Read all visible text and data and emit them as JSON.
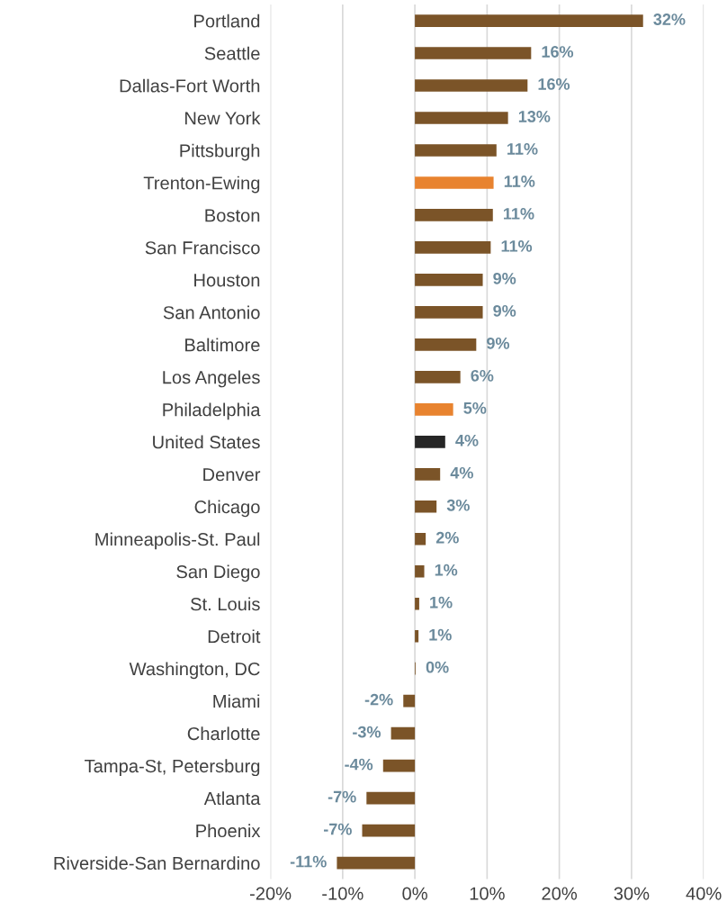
{
  "chart_data": {
    "type": "bar",
    "orientation": "horizontal",
    "categories": [
      "Portland",
      "Seattle",
      "Dallas-Fort Worth",
      "New York",
      "Pittsburgh",
      "Trenton-Ewing",
      "Boston",
      "San Francisco",
      "Houston",
      "San Antonio",
      "Baltimore",
      "Los Angeles",
      "Philadelphia",
      "United States",
      "Denver",
      "Chicago",
      "Minneapolis-St. Paul",
      "San Diego",
      "St. Louis",
      "Detroit",
      "Washington, DC",
      "Miami",
      "Charlotte",
      "Tampa-St, Petersburg",
      "Atlanta",
      "Phoenix",
      "Riverside-San Bernardino"
    ],
    "values": [
      31.6,
      16.1,
      15.6,
      12.9,
      11.3,
      10.9,
      10.8,
      10.5,
      9.4,
      9.4,
      8.5,
      6.3,
      5.3,
      4.2,
      3.5,
      3.0,
      1.5,
      1.3,
      0.6,
      0.5,
      0.1,
      -1.6,
      -3.3,
      -4.4,
      -6.7,
      -7.3,
      -10.8
    ],
    "colors": [
      "#7b5428",
      "#7b5428",
      "#7b5428",
      "#7b5428",
      "#7b5428",
      "#e8832f",
      "#7b5428",
      "#7b5428",
      "#7b5428",
      "#7b5428",
      "#7b5428",
      "#7b5428",
      "#e8832f",
      "#262626",
      "#7b5428",
      "#7b5428",
      "#7b5428",
      "#7b5428",
      "#7b5428",
      "#7b5428",
      "#7b5428",
      "#7b5428",
      "#7b5428",
      "#7b5428",
      "#7b5428",
      "#7b5428",
      "#7b5428"
    ],
    "value_labels": [
      "32%",
      "16%",
      "16%",
      "13%",
      "11%",
      "11%",
      "11%",
      "11%",
      "9%",
      "9%",
      "9%",
      "6%",
      "5%",
      "4%",
      "4%",
      "3%",
      "2%",
      "1%",
      "1%",
      "1%",
      "0%",
      "-2%",
      "-3%",
      "-4%",
      "-7%",
      "-7%",
      "-11%"
    ],
    "xlim": [
      -20,
      40
    ],
    "xticks": [
      {
        "value": -20,
        "label": "-20%"
      },
      {
        "value": -10,
        "label": "-10%"
      },
      {
        "value": 0,
        "label": "0%"
      },
      {
        "value": 10,
        "label": "10%"
      },
      {
        "value": 20,
        "label": "20%"
      },
      {
        "value": 30,
        "label": "30%"
      },
      {
        "value": 40,
        "label": "40%"
      }
    ],
    "grid": "x",
    "legend": false
  }
}
